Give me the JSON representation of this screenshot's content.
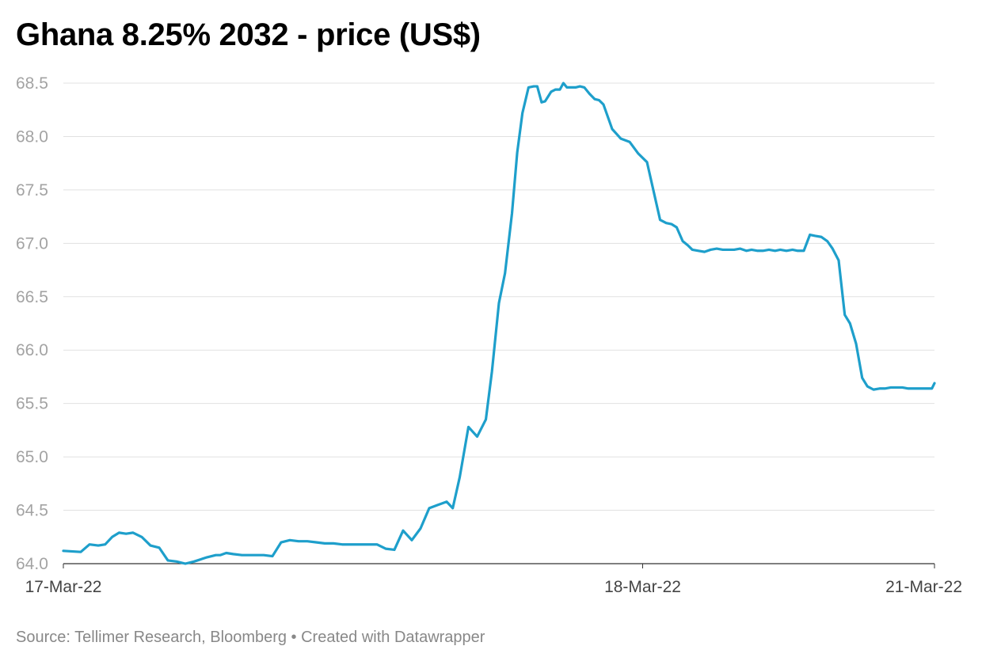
{
  "chart_data": {
    "type": "line",
    "title": "Ghana 8.25% 2032 - price (US$)",
    "xlabel": "",
    "ylabel": "",
    "ylim": [
      64.0,
      68.5
    ],
    "y_ticks": [
      "64.0",
      "64.5",
      "65.0",
      "65.5",
      "66.0",
      "66.5",
      "67.0",
      "67.5",
      "68.0",
      "68.5"
    ],
    "x_ticks": [
      "17-Mar-22",
      "18-Mar-22",
      "21-Mar-22"
    ],
    "grid": true,
    "line_color": "#1e9fcb",
    "series": [
      {
        "x": [
          0.0,
          2.0,
          3.0,
          4.0,
          4.8,
          5.6,
          6.4,
          7.2,
          8.0,
          9.0,
          10.0,
          11.0,
          12.0,
          13.0,
          14.0,
          15.0,
          16.5,
          17.5,
          18.0,
          18.7,
          19.5,
          20.5,
          21.5,
          22.0,
          23.0,
          24.0,
          25.0,
          26.0,
          27.0,
          28.0,
          29.0,
          30.0,
          31.0,
          32.0,
          33.0,
          34.0,
          35.0,
          36.0,
          37.0,
          38.0,
          39.0,
          40.0,
          41.0,
          42.0,
          43.0,
          44.0,
          44.7,
          45.5,
          46.5,
          47.5,
          48.0,
          48.5,
          49.2,
          50.0,
          50.7,
          51.5,
          52.1,
          52.7,
          53.4,
          54.0,
          54.4,
          54.9,
          55.3,
          56.0,
          56.5,
          57.0,
          57.4,
          57.8,
          58.3,
          58.8,
          59.3,
          59.8,
          60.4,
          61.0,
          61.5,
          62.0,
          63.0,
          64.0,
          65.0,
          66.0,
          67.0,
          68.5,
          69.2,
          69.8,
          70.4,
          71.1,
          71.7,
          72.2,
          72.9,
          73.6,
          74.3,
          75.0,
          75.7,
          76.3,
          77.0,
          77.7,
          78.4,
          79.0,
          79.7,
          80.3,
          81.0,
          81.7,
          82.3,
          83.0,
          83.7,
          84.3,
          85.0,
          85.7,
          86.3,
          87.0,
          87.7,
          88.3,
          89.0,
          89.7,
          90.3,
          91.0,
          91.7,
          92.3,
          93.0,
          93.7,
          94.3,
          95.0,
          95.7,
          96.3,
          97.0,
          97.7,
          98.3,
          99.0,
          99.7,
          100.0
        ],
        "values": [
          64.12,
          64.11,
          64.18,
          64.17,
          64.18,
          64.25,
          64.29,
          64.28,
          64.29,
          64.25,
          64.17,
          64.15,
          64.03,
          64.02,
          64.0,
          64.02,
          64.06,
          64.08,
          64.08,
          64.1,
          64.09,
          64.08,
          64.08,
          64.08,
          64.08,
          64.07,
          64.2,
          64.22,
          64.21,
          64.21,
          64.2,
          64.19,
          64.19,
          64.18,
          64.18,
          64.18,
          64.18,
          64.18,
          64.14,
          64.13,
          64.31,
          64.22,
          64.33,
          64.52,
          64.55,
          64.58,
          64.52,
          64.81,
          65.28,
          65.19,
          65.27,
          65.35,
          65.8,
          66.44,
          66.72,
          67.28,
          67.85,
          68.22,
          68.46,
          68.47,
          68.47,
          68.32,
          68.33,
          68.42,
          68.44,
          68.44,
          68.5,
          68.46,
          68.46,
          68.46,
          68.47,
          68.46,
          68.4,
          68.35,
          68.34,
          68.3,
          68.07,
          67.98,
          67.95,
          67.84,
          67.76,
          67.22,
          67.19,
          67.18,
          67.15,
          67.02,
          66.98,
          66.94,
          66.93,
          66.92,
          66.94,
          66.95,
          66.94,
          66.94,
          66.94,
          66.95,
          66.93,
          66.94,
          66.93,
          66.93,
          66.94,
          66.93,
          66.94,
          66.93,
          66.94,
          66.93,
          66.93,
          67.08,
          67.07,
          67.06,
          67.02,
          66.95,
          66.84,
          66.33,
          66.25,
          66.06,
          65.74,
          65.66,
          65.63,
          65.64,
          65.64,
          65.65,
          65.65,
          65.65,
          65.64,
          65.64,
          65.64,
          65.64,
          65.64,
          65.69
        ]
      }
    ]
  },
  "footer": {
    "source_text": "Source: Tellimer Research, Bloomberg • Created with Datawrapper"
  }
}
